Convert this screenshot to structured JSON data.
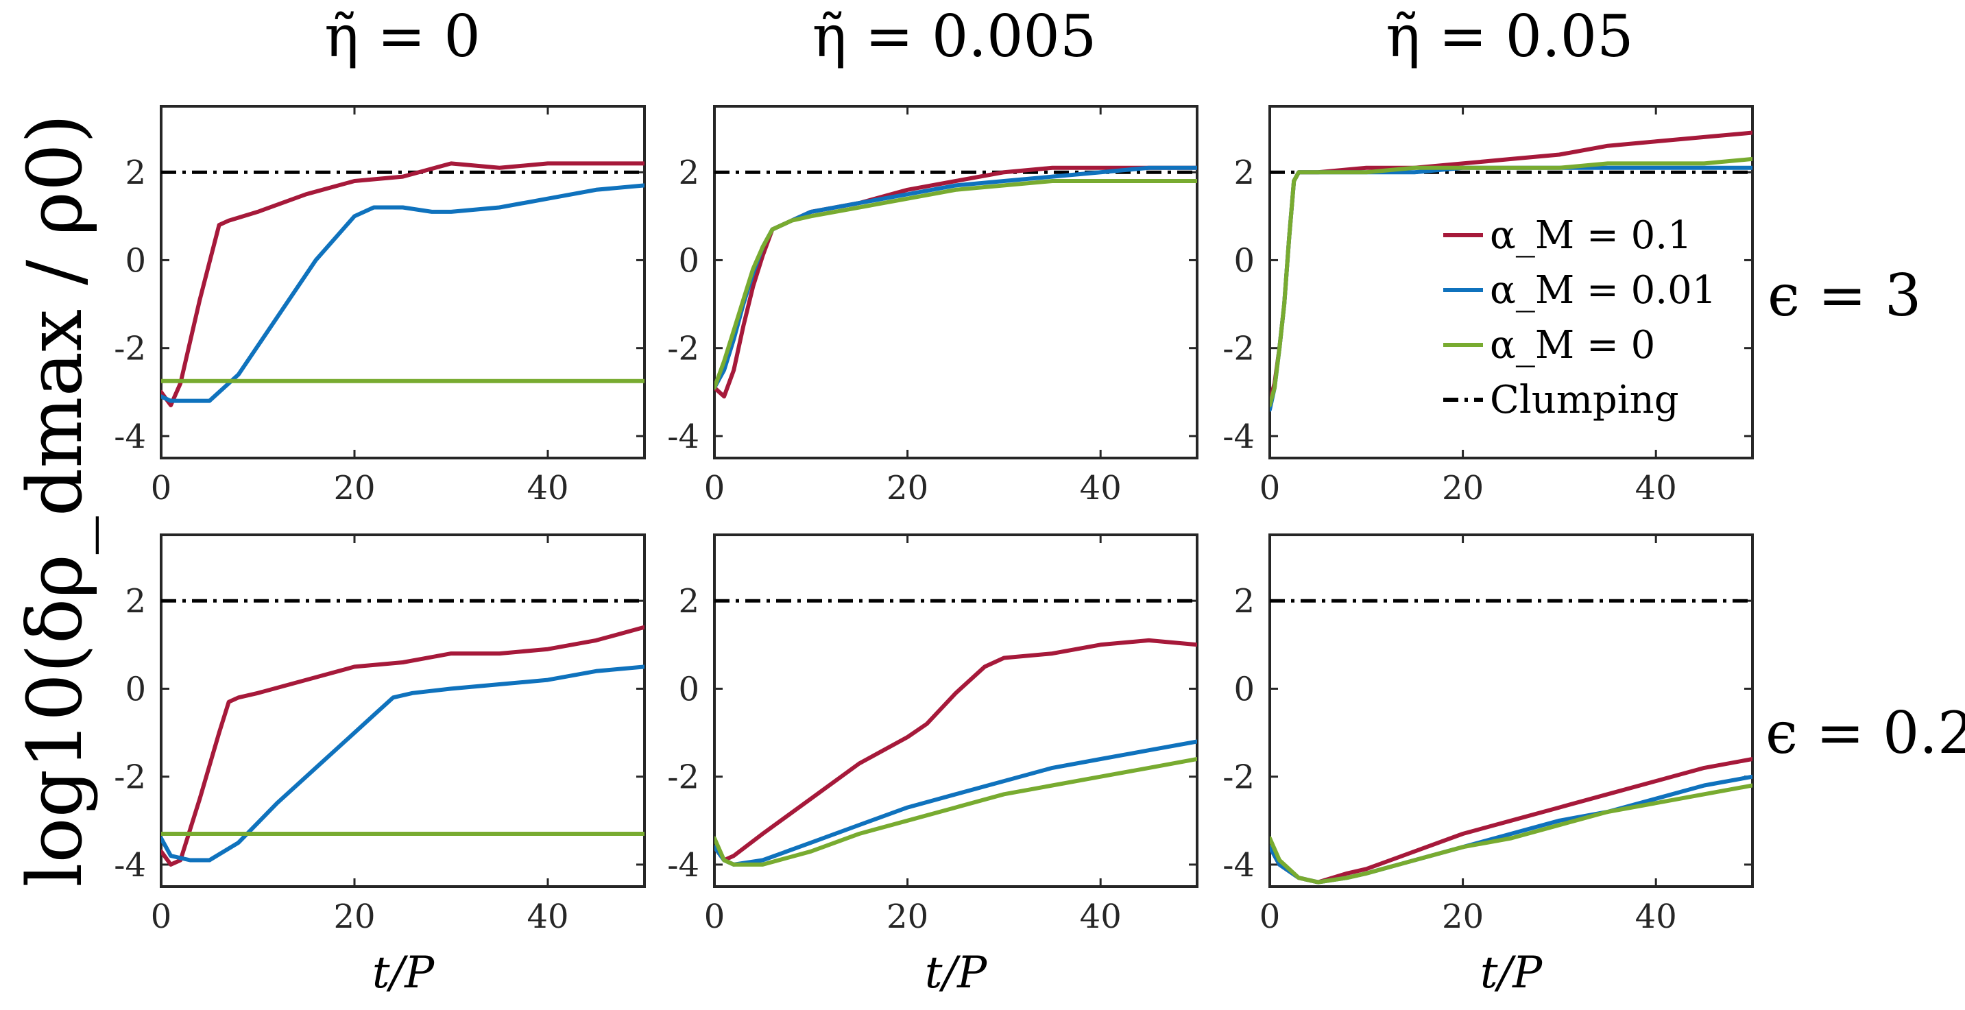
{
  "chart_data": {
    "type": "line",
    "ylabel": "log10(δρ_dmax / ρ0)",
    "xlabel": "t/P",
    "xlim": [
      0,
      50
    ],
    "ylim": [
      -4.5,
      3.5
    ],
    "xticks": [
      0,
      20,
      40
    ],
    "yticks": [
      -4,
      -2,
      0,
      2
    ],
    "xtick_labels": [
      "0",
      "20",
      "40"
    ],
    "ytick_labels": [
      "-4",
      "-2",
      "0",
      "2"
    ],
    "column_titles": [
      "η̃ = 0",
      "η̃ = 0.005",
      "η̃ = 0.05"
    ],
    "row_titles": [
      "ϵ = 3",
      "ϵ = 0.2"
    ],
    "clumping_threshold": 2,
    "legend": {
      "placement": "top-right panel",
      "entries": [
        {
          "label": "α_M = 0.1",
          "color": "#a6193a",
          "style": "solid"
        },
        {
          "label": "α_M = 0.01",
          "color": "#0f72bd",
          "style": "solid"
        },
        {
          "label": "α_M = 0",
          "color": "#78ab30",
          "style": "solid"
        },
        {
          "label": "Clumping",
          "color": "#000000",
          "style": "dashdot"
        }
      ]
    },
    "colors": {
      "alpha_0_1": "#a6193a",
      "alpha_0_01": "#0f72bd",
      "alpha_0": "#78ab30",
      "clumping": "#000000"
    },
    "panels": [
      {
        "row": 0,
        "col": 0,
        "epsilon": "3",
        "eta": "0",
        "series": [
          {
            "name": "α_M = 0.1",
            "color": "#a6193a",
            "x": [
              0,
              1,
              2,
              4,
              6,
              7,
              10,
              15,
              20,
              25,
              30,
              35,
              40,
              45,
              50
            ],
            "y": [
              -3.0,
              -3.3,
              -2.8,
              -0.9,
              0.8,
              0.9,
              1.1,
              1.5,
              1.8,
              1.9,
              2.2,
              2.1,
              2.2,
              2.2,
              2.2
            ]
          },
          {
            "name": "α_M = 0.01",
            "color": "#0f72bd",
            "x": [
              0,
              1,
              2,
              5,
              8,
              12,
              16,
              20,
              22,
              25,
              28,
              30,
              35,
              40,
              45,
              50
            ],
            "y": [
              -3.1,
              -3.2,
              -3.2,
              -3.2,
              -2.6,
              -1.3,
              0.0,
              1.0,
              1.2,
              1.2,
              1.1,
              1.1,
              1.2,
              1.4,
              1.6,
              1.7
            ]
          },
          {
            "name": "α_M = 0",
            "color": "#78ab30",
            "x": [
              0,
              50
            ],
            "y": [
              -2.75,
              -2.75
            ]
          }
        ]
      },
      {
        "row": 0,
        "col": 1,
        "epsilon": "3",
        "eta": "0.005",
        "series": [
          {
            "name": "α_M = 0.1",
            "color": "#a6193a",
            "x": [
              0,
              1,
              2,
              3,
              4,
              5,
              6,
              8,
              10,
              15,
              20,
              25,
              30,
              35,
              40,
              45,
              50
            ],
            "y": [
              -2.9,
              -3.1,
              -2.5,
              -1.5,
              -0.6,
              0.1,
              0.7,
              0.9,
              1.1,
              1.3,
              1.6,
              1.8,
              2.0,
              2.1,
              2.1,
              2.1,
              2.1
            ]
          },
          {
            "name": "α_M = 0.01",
            "color": "#0f72bd",
            "x": [
              0,
              1,
              2,
              3,
              4,
              5,
              6,
              8,
              10,
              15,
              20,
              25,
              30,
              35,
              40,
              45,
              50
            ],
            "y": [
              -2.9,
              -2.5,
              -1.8,
              -1.0,
              -0.3,
              0.3,
              0.7,
              0.9,
              1.1,
              1.3,
              1.5,
              1.7,
              1.8,
              1.9,
              2.0,
              2.1,
              2.1
            ]
          },
          {
            "name": "α_M = 0",
            "color": "#78ab30",
            "x": [
              0,
              1,
              2,
              3,
              4,
              5,
              6,
              8,
              10,
              15,
              20,
              25,
              30,
              35,
              40,
              45,
              50
            ],
            "y": [
              -2.9,
              -2.3,
              -1.6,
              -0.9,
              -0.2,
              0.3,
              0.7,
              0.9,
              1.0,
              1.2,
              1.4,
              1.6,
              1.7,
              1.8,
              1.8,
              1.8,
              1.8
            ]
          }
        ]
      },
      {
        "row": 0,
        "col": 2,
        "epsilon": "3",
        "eta": "0.05",
        "series": [
          {
            "name": "α_M = 0.1",
            "color": "#a6193a",
            "x": [
              0,
              0.5,
              1,
              1.5,
              2,
              2.5,
              3,
              5,
              10,
              15,
              20,
              25,
              30,
              35,
              40,
              45,
              50
            ],
            "y": [
              -3.2,
              -2.8,
              -2.0,
              -1.0,
              0.5,
              1.8,
              2.0,
              2.0,
              2.1,
              2.1,
              2.2,
              2.3,
              2.4,
              2.6,
              2.7,
              2.8,
              2.9
            ]
          },
          {
            "name": "α_M = 0.01",
            "color": "#0f72bd",
            "x": [
              0,
              0.5,
              1,
              1.5,
              2,
              2.5,
              3,
              5,
              10,
              15,
              20,
              25,
              30,
              35,
              40,
              45,
              50
            ],
            "y": [
              -3.4,
              -2.9,
              -2.0,
              -1.0,
              0.5,
              1.8,
              2.0,
              2.0,
              2.0,
              2.0,
              2.1,
              2.1,
              2.1,
              2.1,
              2.1,
              2.1,
              2.1
            ]
          },
          {
            "name": "α_M = 0",
            "color": "#78ab30",
            "x": [
              0,
              0.5,
              1,
              1.5,
              2,
              2.5,
              3,
              5,
              10,
              15,
              20,
              25,
              30,
              35,
              40,
              45,
              50
            ],
            "y": [
              -3.3,
              -2.9,
              -2.0,
              -1.0,
              0.5,
              1.8,
              2.0,
              2.0,
              2.0,
              2.1,
              2.1,
              2.1,
              2.1,
              2.2,
              2.2,
              2.2,
              2.3
            ]
          }
        ]
      },
      {
        "row": 1,
        "col": 0,
        "epsilon": "0.2",
        "eta": "0",
        "series": [
          {
            "name": "α_M = 0.1",
            "color": "#a6193a",
            "x": [
              0,
              1,
              2,
              4,
              6,
              7,
              8,
              10,
              15,
              20,
              25,
              30,
              35,
              40,
              45,
              50
            ],
            "y": [
              -3.7,
              -4.0,
              -3.9,
              -2.5,
              -1.0,
              -0.3,
              -0.2,
              -0.1,
              0.2,
              0.5,
              0.6,
              0.8,
              0.8,
              0.9,
              1.1,
              1.4
            ]
          },
          {
            "name": "α_M = 0.01",
            "color": "#0f72bd",
            "x": [
              0,
              1,
              3,
              5,
              8,
              12,
              16,
              20,
              22,
              24,
              26,
              30,
              35,
              40,
              45,
              50
            ],
            "y": [
              -3.4,
              -3.8,
              -3.9,
              -3.9,
              -3.5,
              -2.6,
              -1.8,
              -1.0,
              -0.6,
              -0.2,
              -0.1,
              0.0,
              0.1,
              0.2,
              0.4,
              0.5
            ]
          },
          {
            "name": "α_M = 0",
            "color": "#78ab30",
            "x": [
              0,
              50
            ],
            "y": [
              -3.3,
              -3.3
            ]
          }
        ]
      },
      {
        "row": 1,
        "col": 1,
        "epsilon": "0.2",
        "eta": "0.005",
        "series": [
          {
            "name": "α_M = 0.1",
            "color": "#a6193a",
            "x": [
              0,
              1,
              2,
              5,
              10,
              15,
              20,
              22,
              25,
              28,
              30,
              35,
              40,
              45,
              50
            ],
            "y": [
              -3.6,
              -3.9,
              -3.8,
              -3.3,
              -2.5,
              -1.7,
              -1.1,
              -0.8,
              -0.1,
              0.5,
              0.7,
              0.8,
              1.0,
              1.1,
              1.0
            ]
          },
          {
            "name": "α_M = 0.01",
            "color": "#0f72bd",
            "x": [
              0,
              1,
              2,
              5,
              10,
              15,
              20,
              25,
              30,
              35,
              40,
              45,
              50
            ],
            "y": [
              -3.6,
              -3.9,
              -4.0,
              -3.9,
              -3.5,
              -3.1,
              -2.7,
              -2.4,
              -2.1,
              -1.8,
              -1.6,
              -1.4,
              -1.2
            ]
          },
          {
            "name": "α_M = 0",
            "color": "#78ab30",
            "x": [
              0,
              1,
              2,
              5,
              10,
              15,
              20,
              25,
              30,
              35,
              40,
              45,
              50
            ],
            "y": [
              -3.4,
              -3.9,
              -4.0,
              -4.0,
              -3.7,
              -3.3,
              -3.0,
              -2.7,
              -2.4,
              -2.2,
              -2.0,
              -1.8,
              -1.6
            ]
          }
        ]
      },
      {
        "row": 1,
        "col": 2,
        "epsilon": "0.2",
        "eta": "0.05",
        "series": [
          {
            "name": "α_M = 0.1",
            "color": "#a6193a",
            "x": [
              0,
              1,
              3,
              5,
              8,
              10,
              15,
              20,
              25,
              30,
              35,
              40,
              45,
              50
            ],
            "y": [
              -3.6,
              -4.0,
              -4.3,
              -4.4,
              -4.2,
              -4.1,
              -3.7,
              -3.3,
              -3.0,
              -2.7,
              -2.4,
              -2.1,
              -1.8,
              -1.6
            ]
          },
          {
            "name": "α_M = 0.01",
            "color": "#0f72bd",
            "x": [
              0,
              1,
              3,
              5,
              8,
              10,
              15,
              20,
              25,
              30,
              35,
              40,
              45,
              50
            ],
            "y": [
              -3.6,
              -4.0,
              -4.3,
              -4.4,
              -4.3,
              -4.2,
              -3.9,
              -3.6,
              -3.3,
              -3.0,
              -2.8,
              -2.5,
              -2.2,
              -2.0
            ]
          },
          {
            "name": "α_M = 0",
            "color": "#78ab30",
            "x": [
              0,
              1,
              3,
              5,
              8,
              10,
              15,
              20,
              25,
              30,
              35,
              40,
              45,
              50
            ],
            "y": [
              -3.4,
              -3.9,
              -4.3,
              -4.4,
              -4.3,
              -4.2,
              -3.9,
              -3.6,
              -3.4,
              -3.1,
              -2.8,
              -2.6,
              -2.4,
              -2.2
            ]
          }
        ]
      }
    ]
  }
}
